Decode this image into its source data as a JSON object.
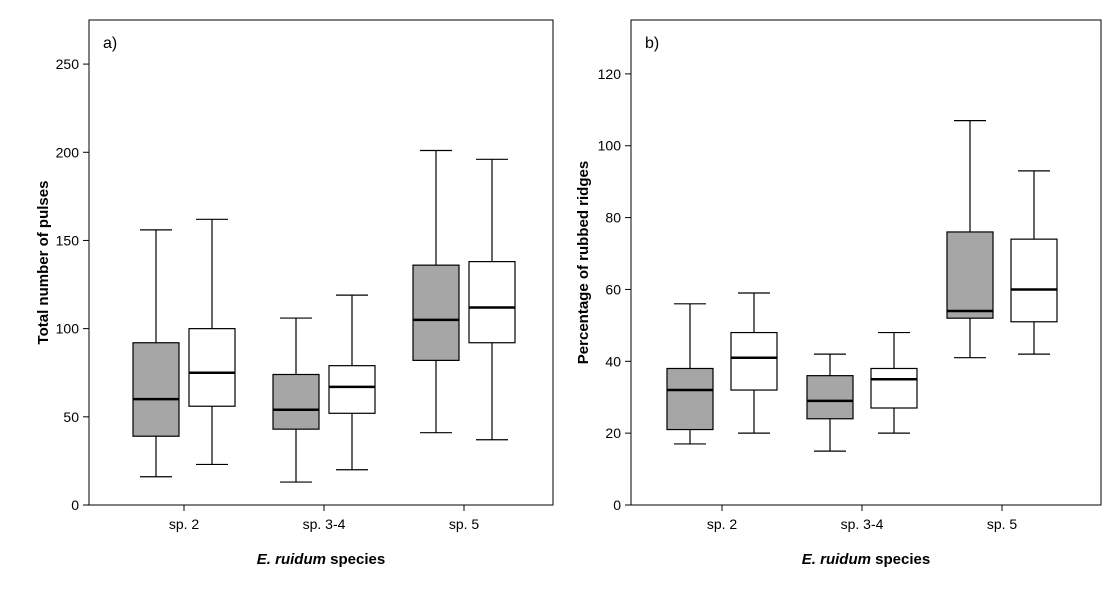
{
  "chart_data": [
    {
      "type": "boxplot",
      "panel_label": "a)",
      "ylabel": "Total number of pulses",
      "xlabel": {
        "italic": "E. ruidum",
        "rest": " species"
      },
      "ylim": [
        0,
        275
      ],
      "yticks": [
        0,
        50,
        100,
        150,
        200,
        250
      ],
      "categories": [
        "sp. 2",
        "sp. 3-4",
        "sp. 5"
      ],
      "series": [
        {
          "fill": "#a6a6a6",
          "boxes": [
            {
              "min": 16,
              "q1": 39,
              "median": 60,
              "q3": 92,
              "max": 156
            },
            {
              "min": 13,
              "q1": 43,
              "median": 54,
              "q3": 74,
              "max": 106
            },
            {
              "min": 41,
              "q1": 82,
              "median": 105,
              "q3": 136,
              "max": 201
            }
          ]
        },
        {
          "fill": "#ffffff",
          "boxes": [
            {
              "min": 23,
              "q1": 56,
              "median": 75,
              "q3": 100,
              "max": 162
            },
            {
              "min": 20,
              "q1": 52,
              "median": 67,
              "q3": 79,
              "max": 119
            },
            {
              "min": 37,
              "q1": 92,
              "median": 112,
              "q3": 138,
              "max": 196
            }
          ]
        }
      ]
    },
    {
      "type": "boxplot",
      "panel_label": "b)",
      "ylabel": "Percentage of rubbed ridges",
      "xlabel": {
        "italic": "E. ruidum",
        "rest": " species"
      },
      "ylim": [
        0,
        135
      ],
      "yticks": [
        0,
        20,
        40,
        60,
        80,
        100,
        120
      ],
      "categories": [
        "sp. 2",
        "sp. 3-4",
        "sp. 5"
      ],
      "series": [
        {
          "fill": "#a6a6a6",
          "boxes": [
            {
              "min": 17,
              "q1": 21,
              "median": 32,
              "q3": 38,
              "max": 56
            },
            {
              "min": 15,
              "q1": 24,
              "median": 29,
              "q3": 36,
              "max": 42
            },
            {
              "min": 41,
              "q1": 52,
              "median": 54,
              "q3": 76,
              "max": 107
            }
          ]
        },
        {
          "fill": "#ffffff",
          "boxes": [
            {
              "min": 20,
              "q1": 32,
              "median": 41,
              "q3": 48,
              "max": 59
            },
            {
              "min": 20,
              "q1": 27,
              "median": 35,
              "q3": 38,
              "max": 48
            },
            {
              "min": 42,
              "q1": 51,
              "median": 60,
              "q3": 74,
              "max": 93
            }
          ]
        }
      ]
    }
  ]
}
